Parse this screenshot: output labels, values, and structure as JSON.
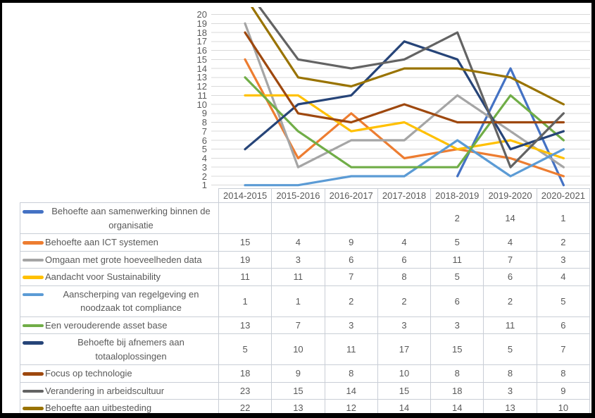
{
  "chart_data": {
    "type": "line",
    "title": "",
    "xlabel": "",
    "ylabel": "",
    "ylim": [
      1,
      20
    ],
    "ytick_step": 1,
    "grid": true,
    "legend_position": "data-table-left",
    "categories": [
      "2014-2015",
      "2015-2016",
      "2016-2017",
      "2017-2018",
      "2018-2019",
      "2019-2020",
      "2020-2021"
    ],
    "series": [
      {
        "name": "Behoefte aan samenwerking binnen de organisatie",
        "color": "#4472C4",
        "values": [
          null,
          null,
          null,
          null,
          2,
          14,
          1
        ]
      },
      {
        "name": "Behoefte aan ICT systemen",
        "color": "#ED7D31",
        "values": [
          15,
          4,
          9,
          4,
          5,
          4,
          2
        ]
      },
      {
        "name": "Omgaan met grote hoeveelheden data",
        "color": "#A5A5A5",
        "values": [
          19,
          3,
          6,
          6,
          11,
          7,
          3
        ]
      },
      {
        "name": "Aandacht voor Sustainability",
        "color": "#FFC000",
        "values": [
          11,
          11,
          7,
          8,
          5,
          6,
          4
        ]
      },
      {
        "name": "Aanscherping van regelgeving en noodzaak tot compliance",
        "color": "#5B9BD5",
        "values": [
          1,
          1,
          2,
          2,
          6,
          2,
          5
        ]
      },
      {
        "name": "Een verouderende asset base",
        "color": "#70AD47",
        "values": [
          13,
          7,
          3,
          3,
          3,
          11,
          6
        ]
      },
      {
        "name": "Behoefte bij afnemers aan totaaloplossingen",
        "color": "#264478",
        "values": [
          5,
          10,
          11,
          17,
          15,
          5,
          7
        ]
      },
      {
        "name": "Focus op technologie",
        "color": "#9E480E",
        "values": [
          18,
          9,
          8,
          10,
          8,
          8,
          8
        ]
      },
      {
        "name": "Verandering in arbeidscultuur",
        "color": "#636363",
        "values": [
          23,
          15,
          14,
          15,
          18,
          3,
          9
        ]
      },
      {
        "name": "Behoefte aan uitbesteding",
        "color": "#997300",
        "values": [
          22,
          13,
          12,
          14,
          14,
          13,
          10
        ]
      }
    ]
  },
  "colors": {
    "background": "#FFFFFF",
    "frame": "#000000",
    "gridline": "#D9D9D9",
    "axis_line": "#BFC5CC",
    "table_border": "#C9CED6",
    "text": "#595959"
  }
}
